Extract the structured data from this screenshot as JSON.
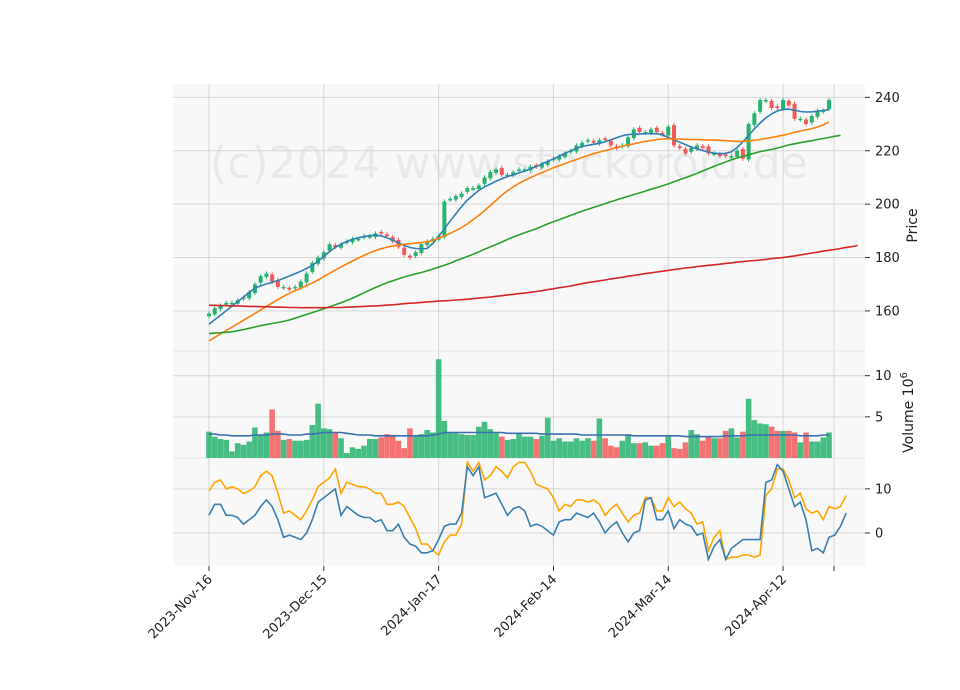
{
  "chart_data": {
    "type": "candlestick",
    "watermark": "(c)2024 www.stockoroid.de",
    "colors": {
      "up": "#26b36e",
      "down": "#f25a5a",
      "ma_short": "#2f7fb5",
      "ma_mid": "#ff7f0e",
      "ma_long": "#2ca02c",
      "ma_200": "#d62728",
      "vol_avg": "#3a6fb0",
      "osc_fast": "#3b7fb0",
      "osc_slow": "#ffa500",
      "grid": "#d6d6d6",
      "panel_bg": "#f8f8f8"
    },
    "x_ticks": [
      "2023-Nov-16",
      "2023-Dec-15",
      "2024-Jan-17",
      "2024-Feb-14",
      "2024-Mar-14",
      "2024-Apr-12"
    ],
    "x_tick_index": [
      0,
      20,
      40,
      60,
      80,
      100
    ],
    "price_panel": {
      "ylabel": "Price",
      "yticks": [
        160,
        180,
        200,
        220,
        240
      ],
      "ylim": [
        145,
        245
      ],
      "close": [
        159,
        161,
        162,
        163,
        163,
        164,
        165,
        167,
        170,
        173,
        174,
        171,
        169,
        169,
        168,
        169,
        171,
        174,
        178,
        180,
        182,
        185,
        184,
        185,
        186,
        187,
        187,
        188,
        188,
        189,
        189,
        188,
        186,
        184,
        181,
        180,
        182,
        185,
        186,
        187,
        188,
        201,
        202,
        203,
        204,
        206,
        206,
        207,
        210,
        212,
        213,
        211,
        211,
        212,
        213,
        213,
        214,
        214,
        215,
        216,
        217,
        218,
        219,
        220,
        222,
        223,
        224,
        223,
        224,
        224,
        222,
        221,
        222,
        225,
        228,
        227,
        227,
        228,
        227,
        226,
        229,
        222,
        221,
        219,
        221,
        222,
        221,
        219,
        219,
        218,
        218,
        218,
        220,
        217,
        230,
        234,
        239,
        239,
        236,
        236,
        239,
        237,
        232,
        232,
        230,
        233,
        235,
        235,
        239
      ],
      "ma": [
        {
          "values": [
            155,
            156.7,
            158.4,
            160.1,
            161.8,
            163.5,
            165.2,
            166.9,
            168.6,
            169.4,
            170.1,
            170.7,
            171.4,
            172.2,
            173.1,
            174,
            174.9,
            175.9,
            177.1,
            178.6,
            180.4,
            182.3,
            183.8,
            185,
            186,
            186.9,
            187.4,
            187.9,
            188.2,
            188.4,
            188.1,
            187.4,
            186.5,
            185.5,
            184.5,
            183.8,
            183.4,
            183.3,
            183.4,
            185.3,
            187.9,
            190.8,
            193.6,
            196.4,
            199.1,
            201.5,
            203.4,
            205.1,
            206.5,
            207.5,
            208.6,
            209.5,
            210.3,
            211,
            211.7,
            212.4,
            213.2,
            214.1,
            215.1,
            216,
            217,
            218,
            219,
            220,
            220.9,
            221.6,
            222,
            222.4,
            222.8,
            223.4,
            224.1,
            224.9,
            225.6,
            226.1,
            226.2,
            226.3,
            226.4,
            226.4,
            226.4,
            225.9,
            225,
            224.1,
            223.2,
            222.3,
            221.4,
            220.7,
            220.1,
            219.5,
            219.1,
            218.9,
            219,
            219.6,
            221.2,
            223.3,
            225.8,
            228.2,
            230.4,
            232.3,
            233.8,
            234.9,
            235.5,
            235.6,
            235.2,
            234.7,
            234.5,
            234.6,
            234.8,
            235.1,
            235.4
          ]
        },
        {
          "values": [
            148.8,
            150.1,
            151.4,
            152.7,
            153.9,
            155.2,
            156.5,
            157.8,
            159.1,
            160.4,
            161.7,
            163,
            164.3,
            165.5,
            166.6,
            167.6,
            168.5,
            169.5,
            170.5,
            171.6,
            172.9,
            174.1,
            175.3,
            176.5,
            177.6,
            178.7,
            179.8,
            180.8,
            181.8,
            182.6,
            183.3,
            183.9,
            184.3,
            184.7,
            185,
            185.2,
            185.4,
            185.6,
            185.9,
            186.5,
            187.2,
            188.1,
            189.1,
            190.1,
            191.3,
            192.6,
            194.2,
            195.8,
            197.6,
            199.5,
            201.4,
            203.3,
            205,
            206.5,
            207.8,
            208.9,
            209.9,
            210.9,
            211.8,
            212.7,
            213.6,
            214.4,
            215.2,
            216,
            216.7,
            217.5,
            218.2,
            218.9,
            219.5,
            220.1,
            220.6,
            221.2,
            221.7,
            222.2,
            222.6,
            223.1,
            223.5,
            223.8,
            224.2,
            224.4,
            224.5,
            224.4,
            224.4,
            224.3,
            224.2,
            224.2,
            224.1,
            224,
            224,
            223.9,
            223.8,
            223.6,
            223.5,
            223.5,
            223.6,
            223.9,
            224.2,
            224.6,
            225,
            225.4,
            225.8,
            226.3,
            226.9,
            227.4,
            227.8,
            228.3,
            228.9,
            229.7,
            230.8
          ]
        },
        {
          "values": [
            151.5,
            151.7,
            151.8,
            152,
            152.2,
            152.6,
            153,
            153.5,
            154,
            154.5,
            154.9,
            155.3,
            155.7,
            156.1,
            156.6,
            157.3,
            158,
            158.7,
            159.4,
            160.1,
            160.8,
            161.6,
            162.3,
            163.1,
            163.9,
            164.8,
            165.8,
            166.8,
            167.8,
            168.8,
            169.7,
            170.6,
            171.3,
            172,
            172.7,
            173.3,
            173.9,
            174.4,
            175,
            175.7,
            176.4,
            177.1,
            177.9,
            178.8,
            179.6,
            180.4,
            181.2,
            182.1,
            183.1,
            184,
            184.9,
            185.8,
            186.8,
            187.7,
            188.5,
            189.3,
            190,
            190.8,
            191.7,
            192.6,
            193.4,
            194.2,
            195,
            195.8,
            196.6,
            197.4,
            198.1,
            198.8,
            199.5,
            200.2,
            200.9,
            201.6,
            202.3,
            202.9,
            203.6,
            204.2,
            204.9,
            205.6,
            206.2,
            206.9,
            207.6,
            208.4,
            209.2,
            209.9,
            210.7,
            211.5,
            212.4,
            213.3,
            214.2,
            215,
            215.8,
            216.6,
            217.3,
            217.9,
            218.5,
            219.1,
            219.7,
            220.1,
            220.5,
            221,
            221.6,
            222.2,
            222.6,
            223,
            223.4,
            223.8,
            224.2,
            224.6,
            225,
            225.4,
            225.8
          ]
        },
        {
          "values": [
            162.1,
            162.1,
            162,
            162,
            161.9,
            161.9,
            161.8,
            161.7,
            161.7,
            161.6,
            161.6,
            161.5,
            161.4,
            161.4,
            161.3,
            161.3,
            161.2,
            161.2,
            161.2,
            161.2,
            161.2,
            161.3,
            161.3,
            161.3,
            161.4,
            161.5,
            161.6,
            161.7,
            161.8,
            161.9,
            162,
            162.2,
            162.3,
            162.5,
            162.7,
            162.9,
            163,
            163.2,
            163.4,
            163.5,
            163.7,
            163.8,
            163.9,
            164.1,
            164.2,
            164.4,
            164.6,
            164.8,
            165,
            165.2,
            165.5,
            165.7,
            166,
            166.2,
            166.5,
            166.7,
            167,
            167.3,
            167.6,
            168,
            168.3,
            168.7,
            169,
            169.4,
            169.8,
            170.2,
            170.6,
            170.9,
            171.3,
            171.6,
            172,
            172.3,
            172.6,
            173,
            173.3,
            173.6,
            174,
            174.3,
            174.6,
            174.9,
            175.2,
            175.5,
            175.8,
            176.1,
            176.3,
            176.6,
            176.8,
            177.1,
            177.3,
            177.5,
            177.8,
            178,
            178.3,
            178.5,
            178.7,
            178.9,
            179.1,
            179.3,
            179.6,
            179.8,
            180,
            180.3,
            180.6,
            181,
            181.3,
            181.7,
            182,
            182.4,
            182.7,
            183,
            183.4,
            183.8,
            184.1,
            184.5
          ]
        }
      ]
    },
    "volume_panel": {
      "ylabel": "Volume  10",
      "ylabel_exp": "6",
      "yticks": [
        5,
        10
      ],
      "ylim": [
        0,
        13
      ],
      "values": [
        3.2,
        2.6,
        2.3,
        2.2,
        0.8,
        1.8,
        1.6,
        2.0,
        3.7,
        2.8,
        3.1,
        5.9,
        3.3,
        2.2,
        2.3,
        2.1,
        2.1,
        2.2,
        4.0,
        6.6,
        3.6,
        3.5,
        3.1,
        2.4,
        0.6,
        1.3,
        1.1,
        1.5,
        2.3,
        2.3,
        2.5,
        2.9,
        2.7,
        2.1,
        1.2,
        3.6,
        2.6,
        2.9,
        3.4,
        3.1,
        12.0,
        4.5,
        3.1,
        3.0,
        2.9,
        2.8,
        2.8,
        3.8,
        4.4,
        3.5,
        3.0,
        2.6,
        2.2,
        2.3,
        3.0,
        2.6,
        2.6,
        2.3,
        2.7,
        4.9,
        2.1,
        2.4,
        2.0,
        2.0,
        2.4,
        2.1,
        2.4,
        2.1,
        4.8,
        2.4,
        1.5,
        1.3,
        2.1,
        2.9,
        1.8,
        1.8,
        1.9,
        1.5,
        1.5,
        1.8,
        2.8,
        1.2,
        1.1,
        1.9,
        3.4,
        2.9,
        2.1,
        2.6,
        2.4,
        2.4,
        3.3,
        3.6,
        2.5,
        3.2,
        7.2,
        4.6,
        4.2,
        4.1,
        3.8,
        3.3,
        3.3,
        3.3,
        3.1,
        1.9,
        3.1,
        2.0,
        2.0,
        2.5,
        3.1
      ],
      "avg": [
        2.9,
        2.9,
        2.8,
        2.8,
        2.7,
        2.7,
        2.7,
        2.7,
        2.8,
        2.8,
        2.8,
        2.9,
        2.9,
        2.9,
        2.8,
        2.8,
        2.8,
        2.9,
        2.9,
        3.0,
        3.1,
        3.1,
        3.1,
        3.1,
        3.0,
        2.9,
        2.8,
        2.8,
        2.8,
        2.7,
        2.7,
        2.7,
        2.7,
        2.7,
        2.7,
        2.7,
        2.7,
        2.7,
        2.7,
        2.8,
        2.9,
        3.1,
        3.1,
        3.1,
        3.1,
        3.1,
        3.1,
        3.1,
        3.1,
        3.1,
        3.1,
        3.1,
        3.0,
        3.0,
        3.0,
        3.0,
        3.0,
        3.0,
        2.9,
        2.9,
        2.9,
        2.9,
        2.9,
        2.9,
        2.9,
        2.8,
        2.8,
        2.8,
        2.8,
        2.8,
        2.8,
        2.8,
        2.8,
        2.8,
        2.7,
        2.7,
        2.7,
        2.7,
        2.7,
        2.7,
        2.7,
        2.7,
        2.7,
        2.6,
        2.6,
        2.6,
        2.6,
        2.6,
        2.6,
        2.6,
        2.7,
        2.7,
        2.7,
        2.7,
        2.8,
        2.8,
        2.8,
        2.8,
        2.8,
        2.8,
        2.8,
        2.8,
        2.8,
        2.7,
        2.7,
        2.7,
        2.7,
        2.8,
        2.8
      ]
    },
    "oscillator_panel": {
      "yticks": [
        0,
        10
      ],
      "ylim": [
        -7.5,
        17
      ],
      "fast": [
        4,
        6.5,
        6.5,
        4,
        4,
        3.5,
        2,
        3,
        4,
        6,
        7.5,
        6,
        3,
        -1,
        -0.5,
        -1,
        -1.5,
        0,
        3,
        7,
        8,
        9,
        10,
        4,
        6,
        5,
        4,
        3.5,
        3.5,
        2.5,
        3,
        0.5,
        0.5,
        2,
        -1,
        -2.5,
        -3,
        -4.5,
        -4.5,
        -4,
        -1.5,
        1.5,
        2,
        2,
        4.5,
        15,
        13,
        15,
        8,
        8.5,
        9,
        6.5,
        4,
        5.5,
        6,
        5,
        1.5,
        2,
        1.5,
        0.5,
        -0.5,
        2.5,
        3,
        3,
        4.5,
        4,
        3.5,
        4.5,
        2.5,
        0,
        1.5,
        2.5,
        0,
        -2,
        0,
        0.5,
        7.5,
        8,
        3,
        3,
        5,
        1,
        3,
        2,
        1.5,
        -0.5,
        0,
        -6,
        -3,
        -1.5,
        -6,
        -3.5,
        -2.5,
        -1.5,
        -1.5,
        -1.5,
        -1.5,
        11.5,
        12,
        15.5,
        14,
        10,
        6,
        7,
        3,
        -4,
        -3.5,
        -4.5,
        -1,
        -0.5,
        1.5,
        4.5
      ],
      "slow": [
        9.5,
        11.5,
        12,
        10,
        10.5,
        10,
        9,
        9.5,
        10.5,
        13,
        14,
        13,
        9,
        4.5,
        5,
        4,
        3,
        5,
        7.5,
        10.5,
        11.5,
        12.5,
        14.5,
        9,
        11.5,
        11,
        10.5,
        10.5,
        10,
        9,
        9,
        6.5,
        6.5,
        7,
        6,
        3.5,
        1,
        -2.5,
        -2.5,
        -4,
        -5,
        -2,
        -0.5,
        -0.5,
        2,
        16,
        14,
        16,
        12,
        13,
        15,
        14,
        12.5,
        15,
        16,
        16,
        14,
        11,
        10.5,
        10,
        8,
        5,
        6.5,
        6,
        7.5,
        7.5,
        7,
        7.5,
        6.5,
        4,
        5.5,
        6.5,
        4.5,
        2.5,
        4,
        4.5,
        8,
        8,
        5,
        5,
        8,
        6,
        7,
        5.5,
        4.5,
        2,
        2.5,
        -4,
        -1,
        0.5,
        -6,
        -5.5,
        -5.5,
        -5,
        -5,
        -5.5,
        -5,
        8.5,
        10,
        14.5,
        14.5,
        12,
        8,
        9,
        5.5,
        4.5,
        5,
        3,
        6,
        5.5,
        6,
        8.5
      ]
    }
  }
}
